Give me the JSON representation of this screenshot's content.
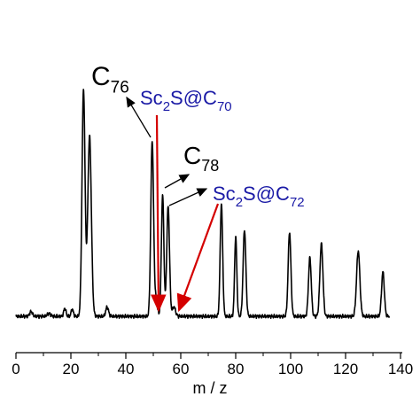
{
  "chart_data": {
    "type": "line",
    "xlabel": "m / z",
    "ylabel": "",
    "title": "",
    "xlim": [
      0,
      140
    ],
    "ylim": [
      0,
      1.0
    ],
    "x_ticks": [
      0,
      20,
      40,
      60,
      80,
      100,
      120,
      140
    ],
    "grid": false,
    "peaks": [
      {
        "x": 5.5,
        "h": 0.02,
        "w": 0.5
      },
      {
        "x": 12.0,
        "h": 0.012,
        "w": 0.6
      },
      {
        "x": 17.8,
        "h": 0.035,
        "w": 0.4
      },
      {
        "x": 20.5,
        "h": 0.03,
        "w": 0.4
      },
      {
        "x": 24.6,
        "h": 0.97,
        "w": 0.55
      },
      {
        "x": 26.8,
        "h": 0.77,
        "w": 0.65
      },
      {
        "x": 33.2,
        "h": 0.04,
        "w": 0.5
      },
      {
        "x": 49.6,
        "h": 0.75,
        "w": 0.5
      },
      {
        "x": 51.0,
        "h": 0.07,
        "w": 0.5
      },
      {
        "x": 53.4,
        "h": 0.52,
        "w": 0.45
      },
      {
        "x": 55.4,
        "h": 0.47,
        "w": 0.5
      },
      {
        "x": 57.5,
        "h": 0.04,
        "w": 0.6
      },
      {
        "x": 74.8,
        "h": 0.48,
        "w": 0.45
      },
      {
        "x": 80.0,
        "h": 0.34,
        "w": 0.4
      },
      {
        "x": 83.2,
        "h": 0.37,
        "w": 0.5
      },
      {
        "x": 99.6,
        "h": 0.36,
        "w": 0.5
      },
      {
        "x": 107.0,
        "h": 0.25,
        "w": 0.5
      },
      {
        "x": 111.2,
        "h": 0.31,
        "w": 0.55
      },
      {
        "x": 124.6,
        "h": 0.28,
        "w": 0.6
      },
      {
        "x": 133.6,
        "h": 0.19,
        "w": 0.5
      }
    ],
    "annotations": [
      {
        "base": "C",
        "sub": "76",
        "color": "black"
      },
      {
        "base": "Sc",
        "sub1": "2",
        "mid": "S@C",
        "sub": "70",
        "color": "blue"
      },
      {
        "base": "C",
        "sub": "78",
        "color": "black"
      },
      {
        "base": "Sc",
        "sub1": "2",
        "mid": "S@C",
        "sub": "72",
        "color": "blue"
      }
    ],
    "colors": {
      "line": "#000000",
      "blue_text": "#1a1aa6",
      "red_arrow": "#d40000"
    }
  }
}
